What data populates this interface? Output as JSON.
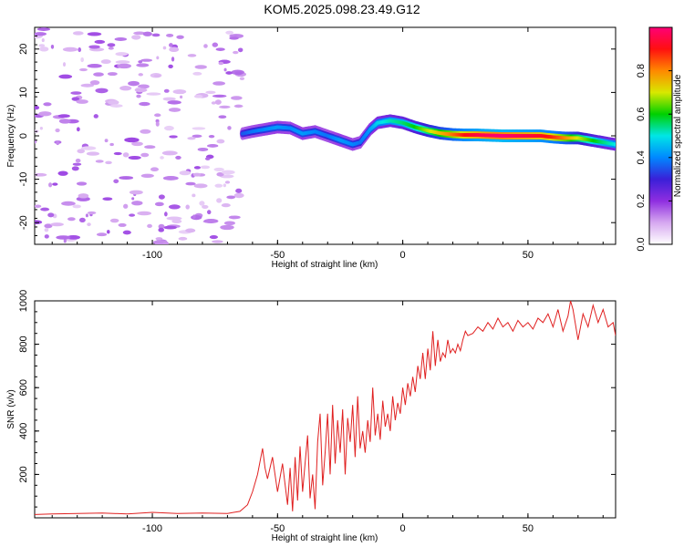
{
  "title": "KOM5.2025.098.23.49.G12",
  "chart_data": [
    {
      "type": "heatmap",
      "title": "KOM5.2025.098.23.49.G12",
      "xlabel": "Height of straight line (km)",
      "ylabel": "Frequency (Hz)",
      "xlim": [
        -147,
        85
      ],
      "ylim": [
        -25,
        25
      ],
      "xticks": [
        -100,
        -50,
        0,
        50
      ],
      "yticks": [
        -20,
        -10,
        0,
        10,
        20
      ],
      "colorbar": {
        "label": "Normalized spectral amplitude",
        "range": [
          0,
          1
        ],
        "ticks": [
          "0.0",
          "0.2",
          "0.4",
          "0.6",
          "0.8"
        ],
        "colors": [
          "#ffffff",
          "#d6a8f0",
          "#8f2ee0",
          "#3a1fd8",
          "#0088ff",
          "#00e6e6",
          "#00d000",
          "#d8e800",
          "#ff8800",
          "#ff1010",
          "#ff0077"
        ]
      },
      "ridge": {
        "x": [
          -64,
          -60,
          -55,
          -50,
          -45,
          -40,
          -35,
          -30,
          -25,
          -20,
          -17,
          -13,
          -10,
          -5,
          0,
          5,
          10,
          15,
          20,
          25,
          30,
          35,
          40,
          45,
          50,
          55,
          60,
          65,
          70,
          75,
          80,
          85
        ],
        "freq": [
          0.5,
          1.0,
          1.5,
          2.0,
          1.8,
          0.5,
          1.0,
          0.0,
          -1.0,
          -2.0,
          -1.5,
          1.5,
          3.0,
          3.5,
          3.0,
          2.0,
          1.2,
          0.6,
          0.3,
          0.2,
          0.2,
          0.1,
          0.0,
          0.0,
          0.0,
          0.0,
          -0.3,
          -0.5,
          -0.5,
          -1.0,
          -1.5,
          -2.0
        ],
        "amplitude": [
          0.35,
          0.38,
          0.4,
          0.42,
          0.4,
          0.42,
          0.4,
          0.38,
          0.42,
          0.4,
          0.38,
          0.42,
          0.48,
          0.52,
          0.55,
          0.6,
          0.68,
          0.75,
          0.82,
          0.9,
          0.95,
          0.98,
          1.0,
          0.97,
          0.95,
          0.92,
          0.88,
          0.8,
          0.7,
          0.62,
          0.55,
          0.5
        ]
      },
      "noise_region": [
        -147,
        -64
      ]
    },
    {
      "type": "line",
      "xlabel": "Height of straight line (km)",
      "ylabel": "SNR (v/v)",
      "xlim": [
        -147,
        85
      ],
      "ylim": [
        0,
        1000
      ],
      "xticks": [
        -100,
        -50,
        0,
        50
      ],
      "yticks": [
        200,
        400,
        600,
        800,
        1000
      ],
      "series": [
        {
          "color": "#e02020",
          "x": [
            -147,
            -140,
            -130,
            -120,
            -110,
            -100,
            -90,
            -80,
            -70,
            -65,
            -62,
            -60,
            -58,
            -56,
            -55,
            -54,
            -52,
            -50,
            -48,
            -46,
            -45,
            -44,
            -43,
            -42,
            -41,
            -40,
            -39,
            -38,
            -37,
            -36,
            -35,
            -34,
            -33,
            -32,
            -31,
            -30,
            -29,
            -28,
            -27,
            -26,
            -25,
            -24,
            -23,
            -22,
            -21,
            -20,
            -19,
            -18,
            -17,
            -16,
            -15,
            -14,
            -13,
            -12,
            -11,
            -10,
            -9,
            -8,
            -7,
            -6,
            -5,
            -4,
            -3,
            -2,
            -1,
            0,
            1,
            2,
            3,
            4,
            5,
            6,
            7,
            8,
            9,
            10,
            11,
            12,
            13,
            14,
            15,
            16,
            17,
            18,
            19,
            20,
            21,
            22,
            23,
            24,
            25,
            26,
            28,
            30,
            32,
            34,
            36,
            38,
            40,
            42,
            44,
            46,
            48,
            50,
            52,
            54,
            56,
            58,
            60,
            62,
            64,
            66,
            67,
            68,
            70,
            72,
            74,
            76,
            78,
            80,
            82,
            84,
            85
          ],
          "y": [
            15,
            18,
            20,
            22,
            18,
            25,
            20,
            22,
            20,
            30,
            60,
            120,
            200,
            320,
            230,
            180,
            280,
            120,
            250,
            60,
            230,
            30,
            280,
            80,
            330,
            120,
            250,
            380,
            90,
            200,
            40,
            350,
            480,
            150,
            300,
            480,
            200,
            520,
            250,
            450,
            300,
            500,
            200,
            460,
            350,
            520,
            280,
            560,
            320,
            400,
            300,
            450,
            350,
            600,
            380,
            480,
            360,
            540,
            420,
            480,
            400,
            560,
            450,
            530,
            480,
            600,
            520,
            620,
            560,
            650,
            580,
            700,
            640,
            760,
            640,
            780,
            680,
            860,
            700,
            820,
            720,
            760,
            740,
            820,
            760,
            780,
            760,
            800,
            770,
            820,
            860,
            840,
            850,
            880,
            860,
            900,
            870,
            920,
            880,
            900,
            860,
            910,
            880,
            900,
            870,
            920,
            900,
            940,
            880,
            960,
            860,
            930,
            1000,
            960,
            820,
            940,
            880,
            980,
            900,
            960,
            880,
            900,
            840
          ]
        }
      ]
    }
  ]
}
